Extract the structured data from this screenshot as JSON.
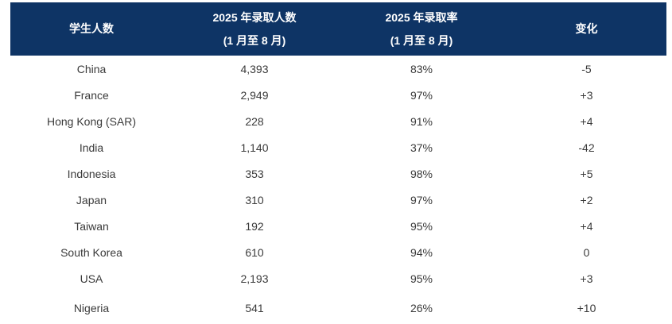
{
  "table": {
    "columns": [
      {
        "label": "学生人数",
        "sublabel": ""
      },
      {
        "label": "2025 年录取人数",
        "sublabel": "(1 月至 8 月)"
      },
      {
        "label": "2025 年录取率",
        "sublabel": "(1 月至 8 月)"
      },
      {
        "label": "变化",
        "sublabel": ""
      }
    ],
    "rows": [
      {
        "country": "China",
        "admitted": "4,393",
        "rate": "83%",
        "change": "-5"
      },
      {
        "country": "France",
        "admitted": "2,949",
        "rate": "97%",
        "change": "+3"
      },
      {
        "country": "Hong Kong (SAR)",
        "admitted": "228",
        "rate": "91%",
        "change": "+4"
      },
      {
        "country": "India",
        "admitted": "1,140",
        "rate": "37%",
        "change": "-42"
      },
      {
        "country": "Indonesia",
        "admitted": "353",
        "rate": "98%",
        "change": "+5"
      },
      {
        "country": "Japan",
        "admitted": "310",
        "rate": "97%",
        "change": "+2"
      },
      {
        "country": "Taiwan",
        "admitted": "192",
        "rate": "95%",
        "change": "+4"
      },
      {
        "country": "South Korea",
        "admitted": "610",
        "rate": "94%",
        "change": "0"
      },
      {
        "country": "USA",
        "admitted": "2,193",
        "rate": "95%",
        "change": "+3"
      },
      {
        "country": "Nigeria",
        "admitted": "541",
        "rate": "26%",
        "change": "+10"
      }
    ]
  },
  "colors": {
    "header_bg": "#0e3465",
    "header_text": "#ffffff",
    "body_text": "#3a3a3a"
  }
}
